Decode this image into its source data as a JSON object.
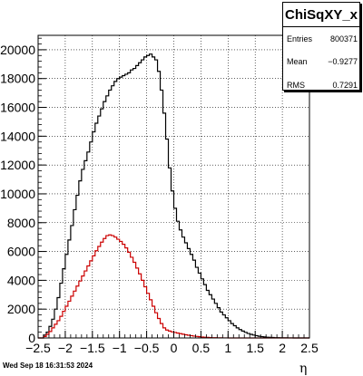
{
  "stats": {
    "title": "ChiSqXY_x",
    "rows": [
      {
        "label": "Entries",
        "value": "800371"
      },
      {
        "label": "Mean",
        "value": "−0.9277"
      },
      {
        "label": "RMS",
        "value": "0.7291"
      }
    ]
  },
  "footer": "Wed Sep 18 16:31:53 2024",
  "chart_data": {
    "type": "histogram",
    "xlabel": "η",
    "ylabel": "",
    "xlim": [
      -2.5,
      2.5
    ],
    "ylim": [
      0,
      21000
    ],
    "grid": true,
    "legend": "none",
    "x_ticks": [
      -2.5,
      -2,
      -1.5,
      -1,
      -0.5,
      0,
      0.5,
      1,
      1.5,
      2,
      2.5
    ],
    "x_tick_labels": [
      "−2.5",
      "−2",
      "−1.5",
      "−1",
      "−0.5",
      "0",
      "0.5",
      "1",
      "1.5",
      "2",
      "2.5"
    ],
    "y_ticks": [
      0,
      2000,
      4000,
      6000,
      8000,
      10000,
      12000,
      14000,
      16000,
      18000,
      20000
    ],
    "y_tick_labels": [
      "0",
      "2000",
      "4000",
      "6000",
      "8000",
      "10000",
      "12000",
      "14000",
      "16000",
      "18000",
      "20000"
    ],
    "bin_edges_range": [
      -2.5,
      2.5
    ],
    "n_bins": 100,
    "series": [
      {
        "color": "#000000",
        "values": [
          0,
          0,
          200,
          400,
          800,
          1300,
          2000,
          2800,
          3800,
          4800,
          5800,
          6800,
          7800,
          8900,
          9900,
          10900,
          11700,
          12300,
          12900,
          13600,
          14300,
          14900,
          15400,
          15900,
          16400,
          16800,
          17200,
          17500,
          17800,
          18000,
          18100,
          18200,
          18300,
          18400,
          18600,
          18700,
          18900,
          19100,
          19300,
          19500,
          19600,
          19700,
          19500,
          19300,
          18500,
          17200,
          15600,
          13800,
          11800,
          10200,
          9000,
          8100,
          7500,
          7000,
          6600,
          6200,
          5800,
          5400,
          4900,
          4500,
          4100,
          3700,
          3300,
          3000,
          2700,
          2400,
          2100,
          1800,
          1600,
          1400,
          1200,
          1000,
          850,
          700,
          580,
          480,
          390,
          310,
          250,
          200,
          160,
          120,
          90,
          70,
          50,
          40,
          30,
          20,
          15,
          10,
          8,
          6,
          4,
          3,
          2,
          1,
          1,
          0,
          0,
          0
        ]
      },
      {
        "color": "#cc0000",
        "values": [
          0,
          0,
          100,
          250,
          450,
          700,
          950,
          1200,
          1500,
          1850,
          2200,
          2550,
          2900,
          3250,
          3600,
          3950,
          4300,
          4650,
          5000,
          5350,
          5700,
          6050,
          6350,
          6650,
          6900,
          7100,
          7150,
          7100,
          7000,
          6850,
          6700,
          6500,
          6250,
          5950,
          5600,
          5250,
          4850,
          4450,
          4000,
          3550,
          3100,
          2650,
          2200,
          1750,
          1350,
          1000,
          700,
          550,
          480,
          420,
          380,
          340,
          300,
          260,
          220,
          190,
          160,
          130,
          105,
          85,
          65,
          50,
          38,
          28,
          20,
          14,
          10,
          7,
          5,
          3,
          2,
          1,
          1,
          0,
          0,
          0,
          0,
          0,
          0,
          0,
          0,
          0,
          0,
          0,
          0,
          0,
          0,
          0,
          0,
          0,
          0,
          0,
          0,
          0,
          0,
          0,
          0,
          0,
          0,
          0
        ]
      }
    ]
  }
}
